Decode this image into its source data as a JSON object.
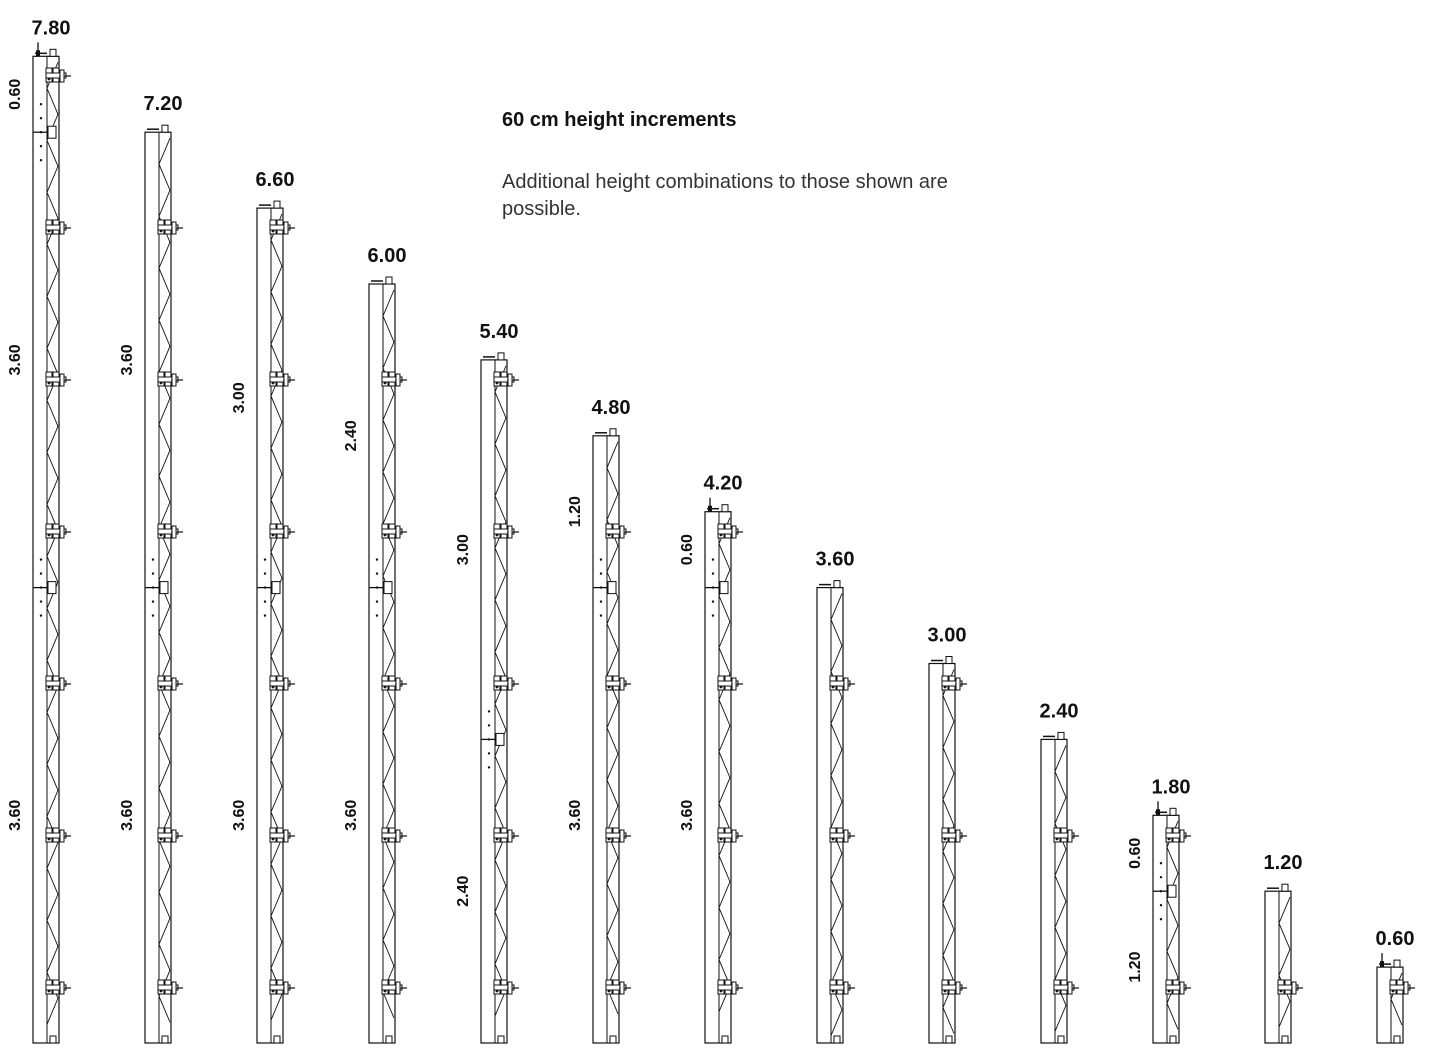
{
  "note": {
    "title": "60 cm height increments",
    "body": "Additional height combinations to those shown are possible."
  },
  "panels": [
    {
      "height": "7.80",
      "segments": [
        "0.60",
        "3.60",
        "3.60"
      ]
    },
    {
      "height": "7.20",
      "segments": [
        "3.60",
        "3.60"
      ]
    },
    {
      "height": "6.60",
      "segments": [
        "3.00",
        "3.60"
      ]
    },
    {
      "height": "6.00",
      "segments": [
        "2.40",
        "3.60"
      ]
    },
    {
      "height": "5.40",
      "segments": [
        "3.00",
        "2.40"
      ]
    },
    {
      "height": "4.80",
      "segments": [
        "1.20",
        "3.60"
      ]
    },
    {
      "height": "4.20",
      "segments": [
        "0.60",
        "3.60"
      ]
    },
    {
      "height": "3.60",
      "segments": []
    },
    {
      "height": "3.00",
      "segments": []
    },
    {
      "height": "2.40",
      "segments": []
    },
    {
      "height": "1.80",
      "segments": [
        "0.60",
        "1.20"
      ]
    },
    {
      "height": "1.20",
      "segments": []
    },
    {
      "height": "0.60",
      "segments": []
    }
  ]
}
